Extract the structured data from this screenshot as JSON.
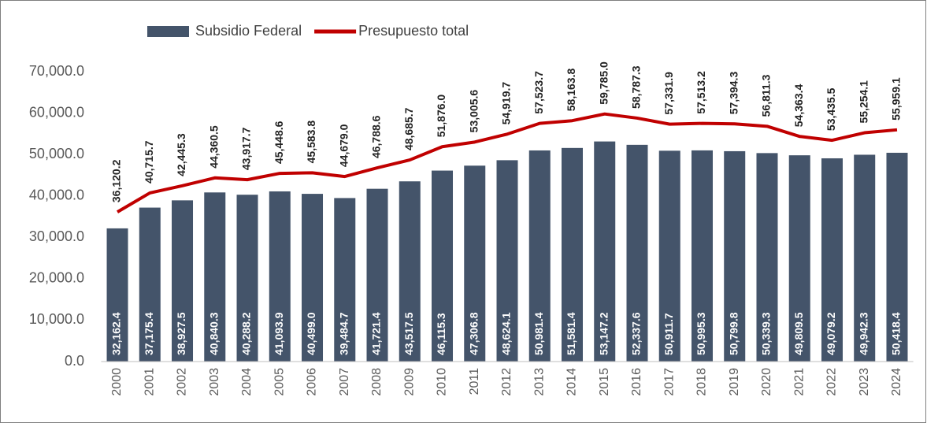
{
  "chart_data": {
    "type": "bar_line",
    "categories": [
      "2000",
      "2001",
      "2002",
      "2003",
      "2004",
      "2005",
      "2006",
      "2007",
      "2008",
      "2009",
      "2010",
      "2011",
      "2012",
      "2013",
      "2014",
      "2015",
      "2016",
      "2017",
      "2018",
      "2019",
      "2020",
      "2021",
      "2022",
      "2023",
      "2024"
    ],
    "series": [
      {
        "name": "Subsidio Federal",
        "type": "bar",
        "color": "#44546a",
        "values": [
          32162.4,
          37175.4,
          38927.5,
          40840.3,
          40288.2,
          41093.9,
          40499.0,
          39484.7,
          41721.4,
          43517.5,
          46115.3,
          47306.8,
          48624.1,
          50981.4,
          51581.4,
          53147.2,
          52337.6,
          50911.7,
          50995.3,
          50799.8,
          50339.3,
          49809.5,
          49079.2,
          49942.3,
          50418.4
        ],
        "value_labels": [
          "32,162.4",
          "37,175.4",
          "38,927.5",
          "40,840.3",
          "40,288.2",
          "41,093.9",
          "40,499.0",
          "39,484.7",
          "41,721.4",
          "43,517.5",
          "46,115.3",
          "47,306.8",
          "48,624.1",
          "50,981.4",
          "51,581.4",
          "53,147.2",
          "52,337.6",
          "50,911.7",
          "50,995.3",
          "50,799.8",
          "50,339.3",
          "49,809.5",
          "49,079.2",
          "49,942.3",
          "50,418.4"
        ]
      },
      {
        "name": "Presupuesto total",
        "type": "line",
        "color": "#c00000",
        "values": [
          36120.2,
          40715.7,
          42445.3,
          44360.5,
          43917.7,
          45448.6,
          45583.8,
          44679.0,
          46788.6,
          48685.7,
          51876.0,
          53005.6,
          54919.7,
          57523.7,
          58163.8,
          59785.0,
          58787.3,
          57331.9,
          57513.2,
          57394.3,
          56811.3,
          54363.4,
          53435.5,
          55254.1,
          55959.1
        ],
        "value_labels": [
          "36,120.2",
          "40,715.7",
          "42,445.3",
          "44,360.5",
          "43,917.7",
          "45,448.6",
          "45,583.8",
          "44,679.0",
          "46,788.6",
          "48,685.7",
          "51,876.0",
          "53,005.6",
          "54,919.7",
          "57,523.7",
          "58,163.8",
          "59,785.0",
          "58,787.3",
          "57,331.9",
          "57,513.2",
          "57,394.3",
          "56,811.3",
          "54,363.4",
          "53,435.5",
          "55,254.1",
          "55,959.1"
        ]
      }
    ],
    "ylim": [
      0,
      70000
    ],
    "yticks": [
      {
        "value": 0,
        "label": "0.0"
      },
      {
        "value": 10000,
        "label": "10,000.0"
      },
      {
        "value": 20000,
        "label": "20,000.0"
      },
      {
        "value": 30000,
        "label": "30,000.0"
      },
      {
        "value": 40000,
        "label": "40,000.0"
      },
      {
        "value": 50000,
        "label": "50,000.0"
      },
      {
        "value": 60000,
        "label": "60,000.0"
      },
      {
        "value": 70000,
        "label": "70,000.0"
      }
    ],
    "grid": false,
    "legend": "top"
  }
}
